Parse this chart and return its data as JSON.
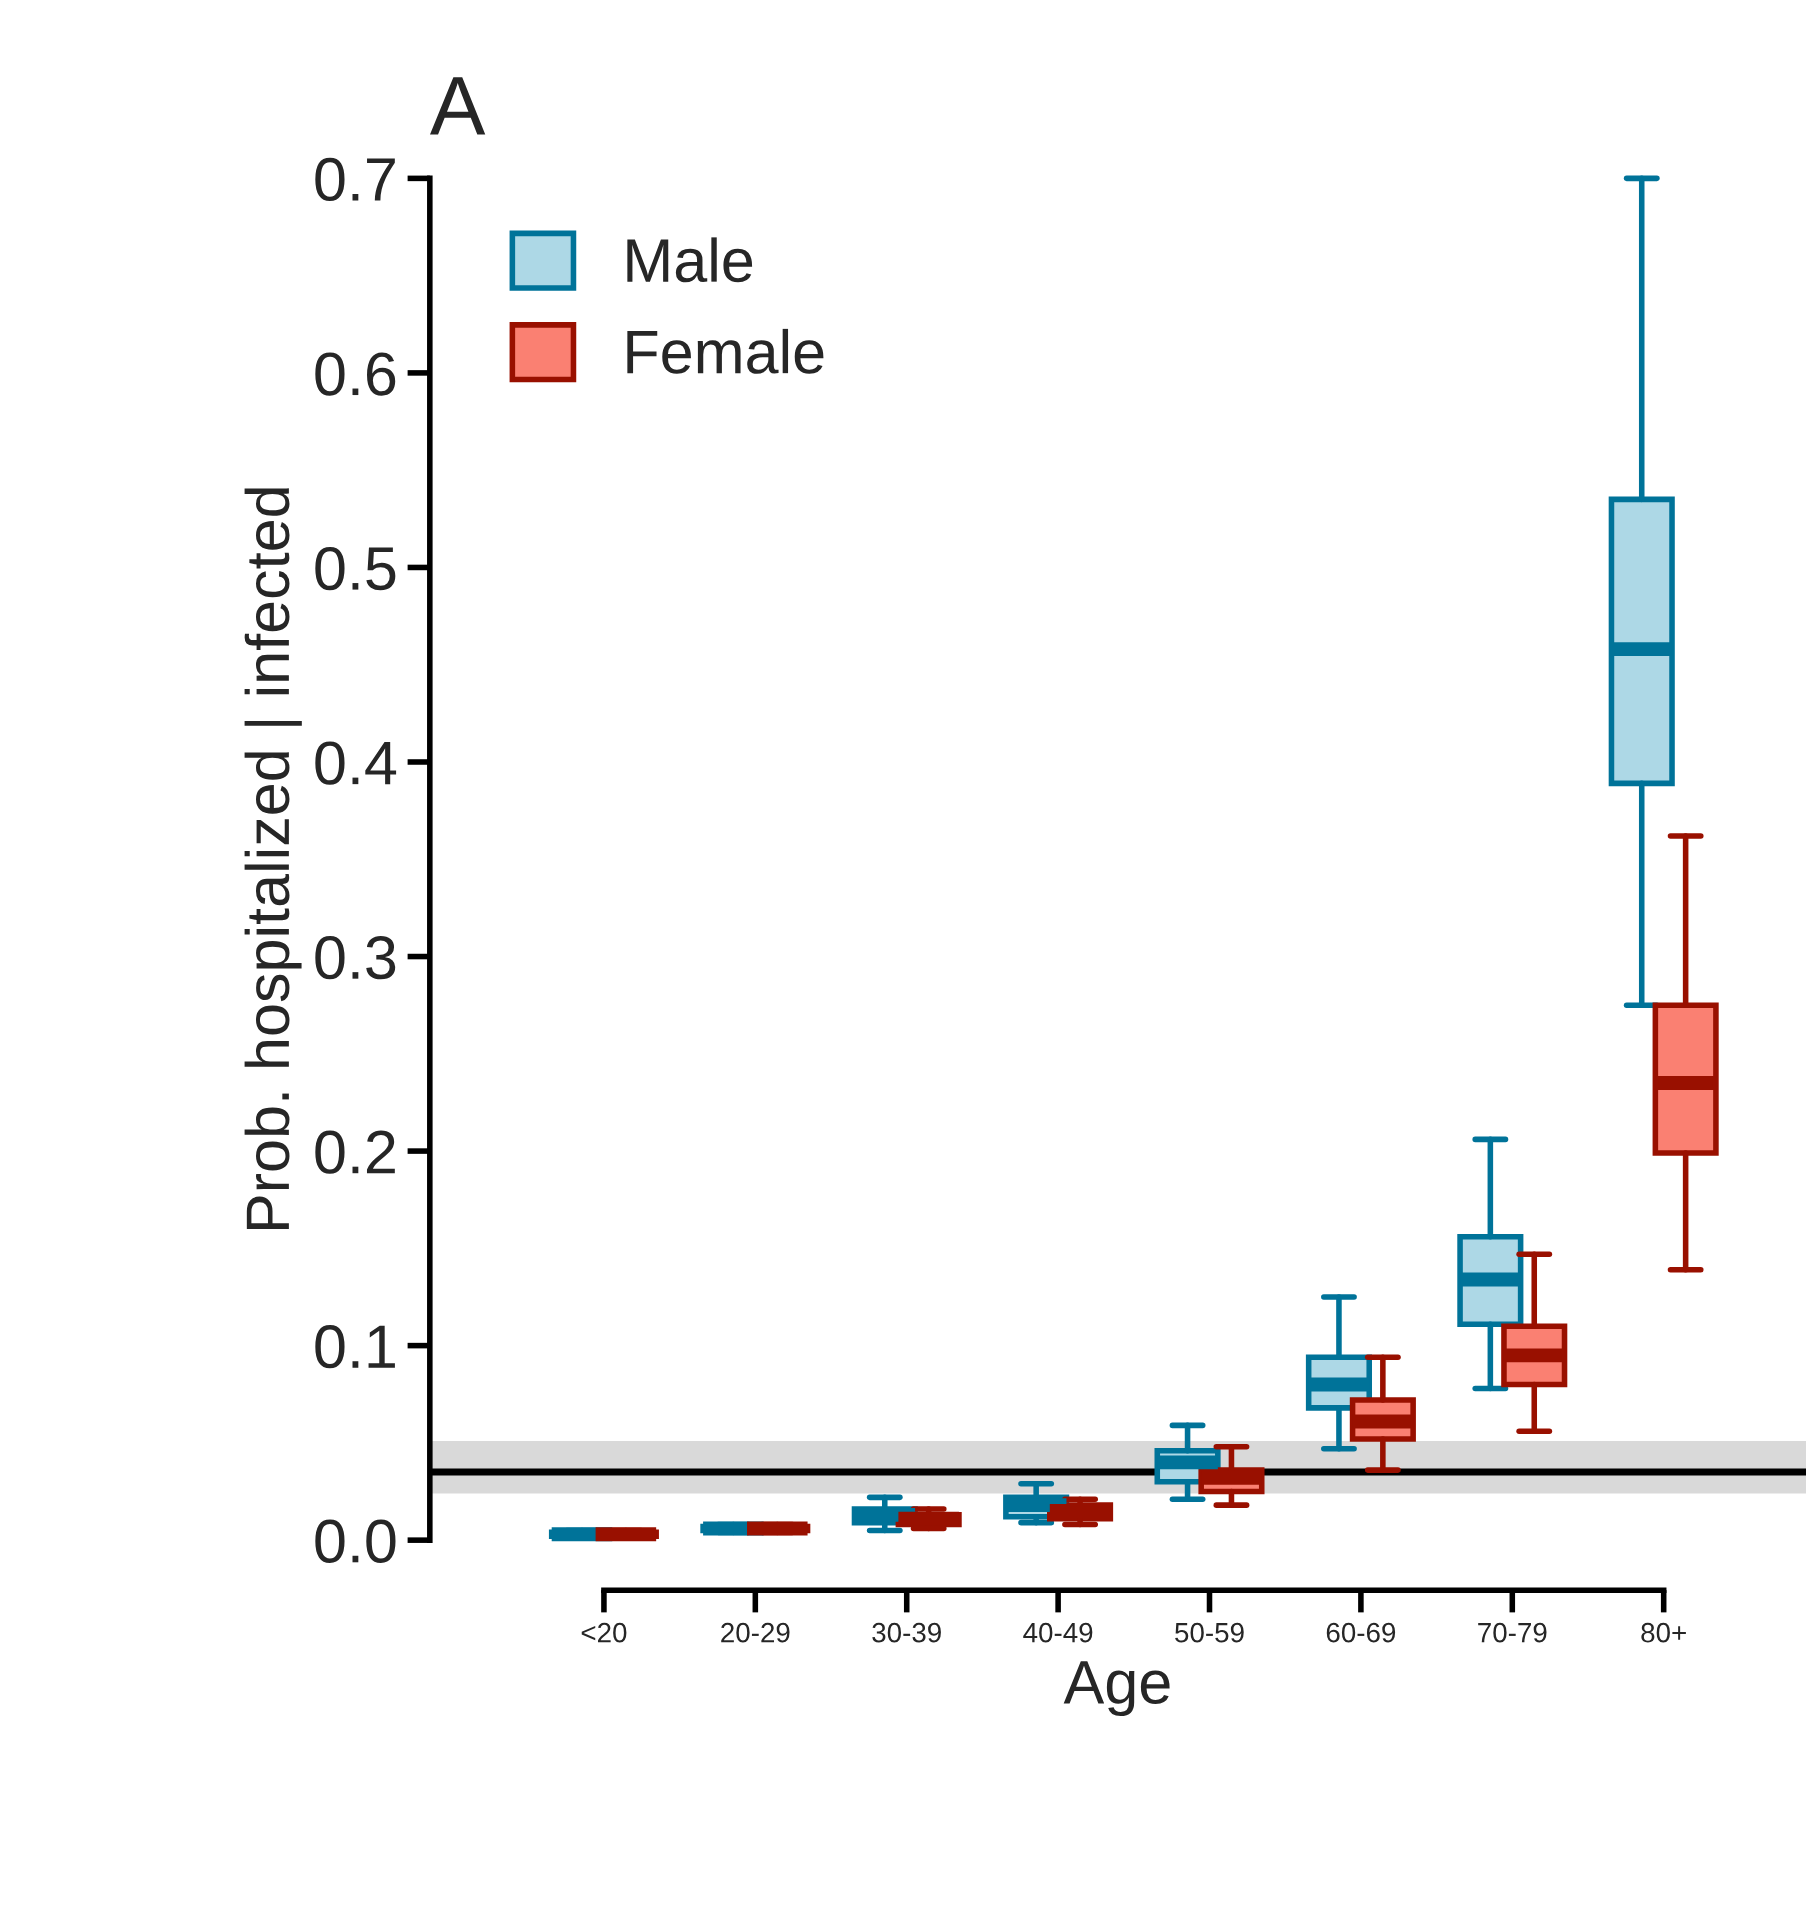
{
  "chart_data": {
    "type": "box",
    "title": "A",
    "xlabel": "Age",
    "ylabel": "Prob. hospitalized | infected",
    "categories": [
      "<20",
      "20-29",
      "30-39",
      "40-49",
      "50-59",
      "60-69",
      "70-79",
      "80+"
    ],
    "ylim": [
      0,
      0.7
    ],
    "yticks": [
      {
        "value": 0,
        "label": "0.0"
      },
      0.1,
      0.2,
      0.3,
      0.4,
      0.5,
      0.6,
      0.7
    ],
    "legend": "top left",
    "grid": false,
    "ref_lines": [
      {
        "axis": "y",
        "value": 0.035,
        "color": "#000000"
      }
    ],
    "bands": [
      {
        "axis": "y",
        "from": 0.024,
        "to": 0.051,
        "color": "#d9d9d9"
      }
    ],
    "series": [
      {
        "name": "Male",
        "color": "#add8e6",
        "boxes": [
          {
            "low": 0.001,
            "q1": 0.002,
            "median": 0.003,
            "q3": 0.004,
            "high": 0.005
          },
          {
            "low": 0.004,
            "q1": 0.005,
            "median": 0.006,
            "q3": 0.007,
            "high": 0.008
          },
          {
            "low": 0.005,
            "q1": 0.009,
            "median": 0.013,
            "q3": 0.016,
            "high": 0.022
          },
          {
            "low": 0.009,
            "q1": 0.012,
            "median": 0.018,
            "q3": 0.022,
            "high": 0.029
          },
          {
            "low": 0.021,
            "q1": 0.03,
            "median": 0.04,
            "q3": 0.046,
            "high": 0.059
          },
          {
            "low": 0.047,
            "q1": 0.068,
            "median": 0.08,
            "q3": 0.094,
            "high": 0.125
          },
          {
            "low": 0.078,
            "q1": 0.111,
            "median": 0.134,
            "q3": 0.156,
            "high": 0.206
          },
          {
            "low": 0.275,
            "q1": 0.389,
            "median": 0.458,
            "q3": 0.535,
            "high": 0.7
          }
        ]
      },
      {
        "name": "Female",
        "color": "#fa8072",
        "boxes": [
          {
            "low": 0.001,
            "q1": 0.002,
            "median": 0.003,
            "q3": 0.004,
            "high": 0.005
          },
          {
            "low": 0.004,
            "q1": 0.005,
            "median": 0.006,
            "q3": 0.007,
            "high": 0.008
          },
          {
            "low": 0.006,
            "q1": 0.008,
            "median": 0.011,
            "q3": 0.013,
            "high": 0.016
          },
          {
            "low": 0.008,
            "q1": 0.011,
            "median": 0.015,
            "q3": 0.018,
            "high": 0.021
          },
          {
            "low": 0.018,
            "q1": 0.025,
            "median": 0.032,
            "q3": 0.036,
            "high": 0.048
          },
          {
            "low": 0.036,
            "q1": 0.052,
            "median": 0.061,
            "q3": 0.072,
            "high": 0.094
          },
          {
            "low": 0.056,
            "q1": 0.08,
            "median": 0.095,
            "q3": 0.11,
            "high": 0.147
          },
          {
            "low": 0.139,
            "q1": 0.199,
            "median": 0.235,
            "q3": 0.275,
            "high": 0.362
          }
        ]
      }
    ]
  }
}
